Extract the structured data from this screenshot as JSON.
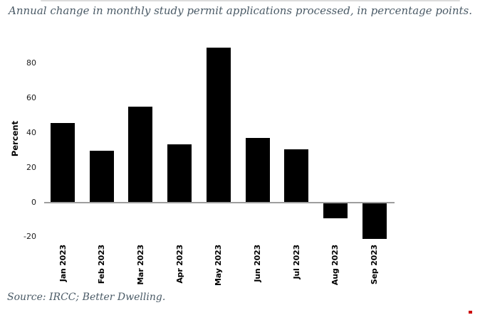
{
  "title": "Annual change in monthly study permit applications processed, in percentage points.",
  "source": "Source: IRCC; Better Dwelling.",
  "colors": {
    "title_text": "#4a5a66",
    "source_text": "#4a5a66",
    "bar": "#000000",
    "zero_axis_line": "#9e9e9e",
    "tick_text": "#1c1c1c",
    "top_divider": "#dcdcdc",
    "red_mark": "#cc0000"
  },
  "chart_data": {
    "type": "bar",
    "title": "Annual change in monthly study permit applications processed, in percentage points.",
    "categories": [
      "Jan 2023",
      "Feb 2023",
      "Mar 2023",
      "Apr 2023",
      "May 2023",
      "Jun 2023",
      "Jul 2023",
      "Aug 2023",
      "Sep 2023"
    ],
    "values": [
      45.9,
      29.9,
      55.2,
      33.4,
      89.1,
      37.0,
      30.7,
      -9.0,
      -20.7
    ],
    "xlabel": "",
    "ylabel": "Percent",
    "yticks": [
      80,
      60,
      40,
      20,
      0,
      -20
    ],
    "ylim": [
      -23,
      91
    ],
    "grid": false,
    "legend": false,
    "bar_color": "#000000",
    "x_tick_rotation": 90
  }
}
